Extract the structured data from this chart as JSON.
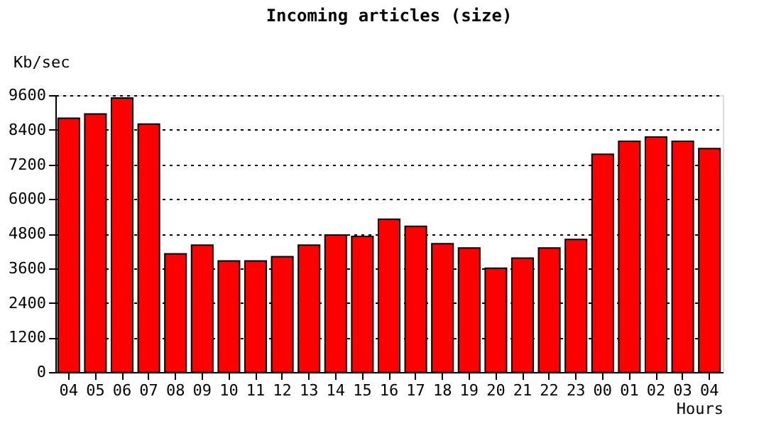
{
  "chart_data": {
    "type": "bar",
    "title": "Incoming articles (size)",
    "xlabel": "Hours",
    "ylabel": "Kb/sec",
    "categories": [
      "04",
      "05",
      "06",
      "07",
      "08",
      "09",
      "10",
      "11",
      "12",
      "13",
      "14",
      "15",
      "16",
      "17",
      "18",
      "19",
      "20",
      "21",
      "22",
      "23",
      "00",
      "01",
      "02",
      "03",
      "04"
    ],
    "values": [
      8800,
      8950,
      9500,
      8600,
      4100,
      4400,
      3850,
      3850,
      4000,
      4400,
      4750,
      4700,
      5300,
      5050,
      4450,
      4300,
      3600,
      3950,
      4300,
      4600,
      7550,
      8000,
      8150,
      8000,
      7750
    ],
    "color": "#ff0000",
    "ylim": [
      0,
      9600
    ],
    "yticks": [
      0,
      1200,
      2400,
      3600,
      4800,
      6000,
      7200,
      8400,
      9600
    ],
    "grid": "y"
  }
}
